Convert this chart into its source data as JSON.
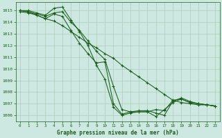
{
  "bg_color": "#cce8e0",
  "grid_color": "#aaccbb",
  "line_color": "#1a5c1a",
  "title": "Graphe pression niveau de la mer (hPa)",
  "xlim": [
    -0.5,
    23.5
  ],
  "ylim": [
    1005.5,
    1015.7
  ],
  "yticks": [
    1006,
    1007,
    1008,
    1009,
    1010,
    1011,
    1012,
    1013,
    1014,
    1015
  ],
  "xticks": [
    0,
    1,
    2,
    3,
    4,
    5,
    6,
    7,
    8,
    9,
    10,
    11,
    12,
    13,
    14,
    15,
    16,
    17,
    18,
    19,
    20,
    21,
    22,
    23
  ],
  "series": [
    [
      1015.0,
      1015.0,
      1014.8,
      1014.6,
      1015.2,
      1015.3,
      1014.2,
      1013.2,
      1012.0,
      1010.3,
      1009.1,
      1006.7,
      1006.0,
      1006.2,
      1006.3,
      1006.3,
      1006.5,
      1006.4,
      1007.3,
      1007.4,
      1007.1,
      1007.0,
      1006.9,
      1006.8
    ],
    [
      1015.0,
      1014.9,
      1014.6,
      1014.3,
      1014.7,
      1014.5,
      1013.3,
      1012.2,
      1011.3,
      1010.5,
      1010.6,
      1007.0,
      1006.1,
      1006.3,
      1006.4,
      1006.4,
      1006.2,
      1006.0,
      1007.2,
      1007.5,
      1007.2,
      1007.0,
      1006.9,
      1006.8
    ],
    [
      1014.9,
      1014.8,
      1014.6,
      1014.3,
      1014.1,
      1013.7,
      1013.2,
      1012.7,
      1012.2,
      1011.8,
      1011.3,
      1010.9,
      1010.3,
      1009.8,
      1009.3,
      1008.8,
      1008.3,
      1007.8,
      1007.3,
      1007.1,
      1007.0,
      1006.9,
      1006.9,
      1006.8
    ],
    [
      1015.0,
      1014.9,
      1014.7,
      1014.5,
      1014.8,
      1014.9,
      1014.0,
      1013.3,
      1012.4,
      1011.5,
      1010.8,
      1008.5,
      1006.5,
      1006.3,
      1006.3,
      1006.3,
      1005.9,
      1006.5,
      1007.1,
      1007.4,
      1007.1,
      1007.0,
      1006.9,
      1006.8
    ]
  ]
}
